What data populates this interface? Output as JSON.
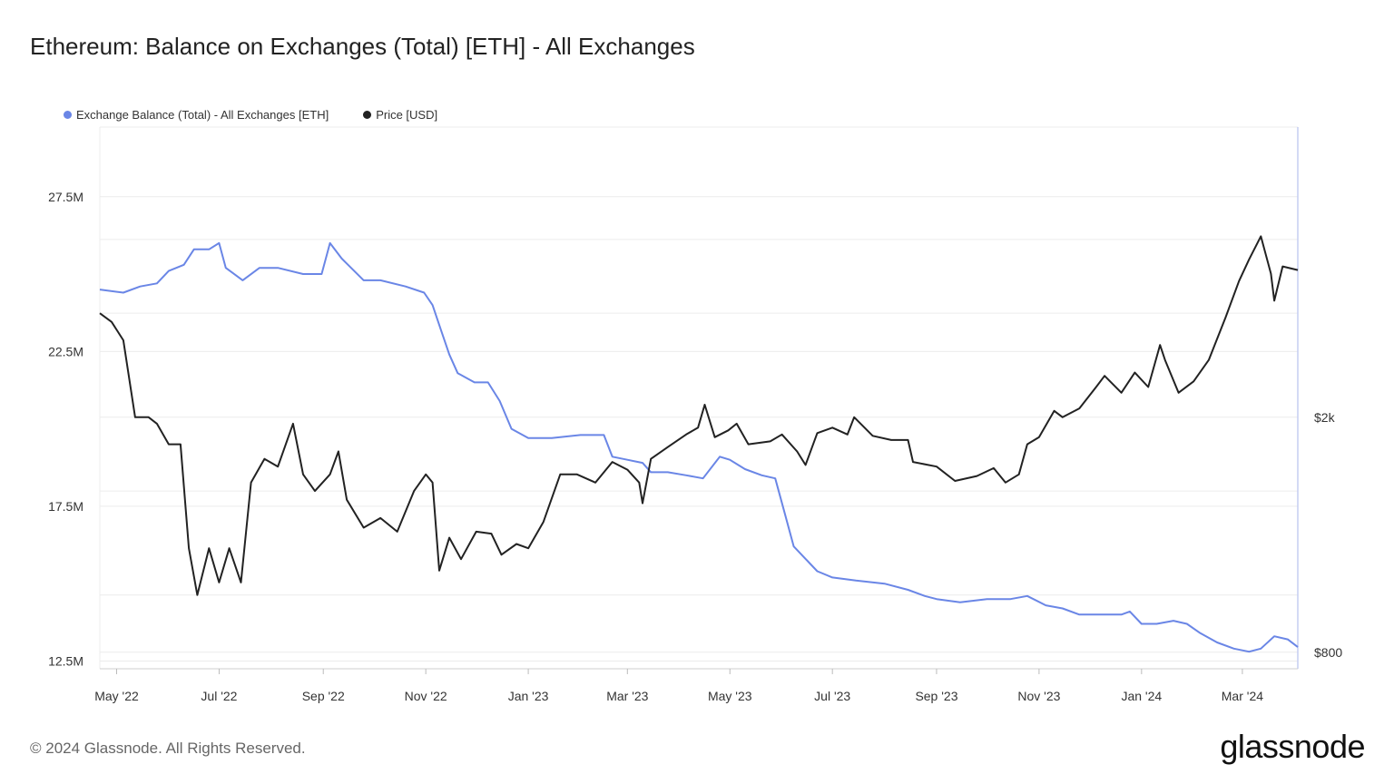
{
  "title": "Ethereum: Balance on Exchanges (Total) [ETH] - All Exchanges",
  "footer": "© 2024 Glassnode. All Rights Reserved.",
  "logo": "glassnode",
  "chart_data": {
    "type": "line",
    "title": "Ethereum: Balance on Exchanges (Total) [ETH] - All Exchanges",
    "x_ticks": [
      "May '22",
      "Jul '22",
      "Sep '22",
      "Nov '22",
      "Jan '23",
      "Mar '23",
      "May '23",
      "Jul '23",
      "Sep '23",
      "Nov '23",
      "Jan '24",
      "Mar '24"
    ],
    "x_range": [
      "2022-04-21",
      "2024-04-03"
    ],
    "left_axis": {
      "ticks": [
        "12.5M",
        "17.5M",
        "22.5M",
        "27.5M"
      ],
      "tick_values": [
        12500000,
        17500000,
        22500000,
        27500000
      ],
      "range": [
        12250000,
        29750000
      ]
    },
    "right_axis": {
      "ticks": [
        "$800",
        "$2k"
      ],
      "tick_values": [
        800,
        2000
      ],
      "scale": "log",
      "range": [
        750,
        6200
      ]
    },
    "grid": true,
    "legend_position": "top-left",
    "colors": {
      "balance": "#6a86e6",
      "price": "#222222",
      "grid": "#ececec",
      "axis": "#c5cdf2"
    },
    "series": [
      {
        "name": "Exchange Balance (Total) - All Exchanges [ETH]",
        "axis": "left",
        "color": "#6a86e6",
        "points": [
          [
            "2022-04-21",
            24.5
          ],
          [
            "2022-05-05",
            24.4
          ],
          [
            "2022-05-15",
            24.6
          ],
          [
            "2022-05-25",
            24.7
          ],
          [
            "2022-06-01",
            25.1
          ],
          [
            "2022-06-10",
            25.3
          ],
          [
            "2022-06-16",
            25.8
          ],
          [
            "2022-06-25",
            25.8
          ],
          [
            "2022-07-01",
            26.0
          ],
          [
            "2022-07-05",
            25.2
          ],
          [
            "2022-07-15",
            24.8
          ],
          [
            "2022-07-25",
            25.2
          ],
          [
            "2022-08-05",
            25.2
          ],
          [
            "2022-08-20",
            25.0
          ],
          [
            "2022-08-31",
            25.0
          ],
          [
            "2022-09-05",
            26.0
          ],
          [
            "2022-09-12",
            25.5
          ],
          [
            "2022-09-25",
            24.8
          ],
          [
            "2022-10-05",
            24.8
          ],
          [
            "2022-10-20",
            24.6
          ],
          [
            "2022-10-31",
            24.4
          ],
          [
            "2022-11-05",
            24.0
          ],
          [
            "2022-11-10",
            23.2
          ],
          [
            "2022-11-15",
            22.4
          ],
          [
            "2022-11-20",
            21.8
          ],
          [
            "2022-11-30",
            21.5
          ],
          [
            "2022-12-08",
            21.5
          ],
          [
            "2022-12-15",
            20.9
          ],
          [
            "2022-12-22",
            20.0
          ],
          [
            "2023-01-01",
            19.7
          ],
          [
            "2023-01-15",
            19.7
          ],
          [
            "2023-02-01",
            19.8
          ],
          [
            "2023-02-15",
            19.8
          ],
          [
            "2023-02-20",
            19.1
          ],
          [
            "2023-03-01",
            19.0
          ],
          [
            "2023-03-10",
            18.9
          ],
          [
            "2023-03-15",
            18.6
          ],
          [
            "2023-03-25",
            18.6
          ],
          [
            "2023-04-05",
            18.5
          ],
          [
            "2023-04-15",
            18.4
          ],
          [
            "2023-04-25",
            19.1
          ],
          [
            "2023-05-01",
            19.0
          ],
          [
            "2023-05-10",
            18.7
          ],
          [
            "2023-05-20",
            18.5
          ],
          [
            "2023-05-28",
            18.4
          ],
          [
            "2023-06-02",
            17.4
          ],
          [
            "2023-06-08",
            16.2
          ],
          [
            "2023-06-15",
            15.8
          ],
          [
            "2023-06-22",
            15.4
          ],
          [
            "2023-07-01",
            15.2
          ],
          [
            "2023-07-15",
            15.1
          ],
          [
            "2023-08-01",
            15.0
          ],
          [
            "2023-08-15",
            14.8
          ],
          [
            "2023-08-25",
            14.6
          ],
          [
            "2023-09-01",
            14.5
          ],
          [
            "2023-09-15",
            14.4
          ],
          [
            "2023-10-01",
            14.5
          ],
          [
            "2023-10-15",
            14.5
          ],
          [
            "2023-10-25",
            14.6
          ],
          [
            "2023-11-05",
            14.3
          ],
          [
            "2023-11-15",
            14.2
          ],
          [
            "2023-11-25",
            14.0
          ],
          [
            "2023-12-10",
            14.0
          ],
          [
            "2023-12-20",
            14.0
          ],
          [
            "2023-12-25",
            14.1
          ],
          [
            "2024-01-01",
            13.7
          ],
          [
            "2024-01-10",
            13.7
          ],
          [
            "2024-01-20",
            13.8
          ],
          [
            "2024-01-28",
            13.7
          ],
          [
            "2024-02-05",
            13.4
          ],
          [
            "2024-02-15",
            13.1
          ],
          [
            "2024-02-25",
            12.9
          ],
          [
            "2024-03-05",
            12.8
          ],
          [
            "2024-03-12",
            12.9
          ],
          [
            "2024-03-20",
            13.3
          ],
          [
            "2024-03-28",
            13.2
          ],
          [
            "2024-04-03",
            12.95
          ]
        ]
      },
      {
        "name": "Price [USD]",
        "axis": "right",
        "color": "#222222",
        "points": [
          [
            "2022-04-21",
            3000
          ],
          [
            "2022-04-28",
            2900
          ],
          [
            "2022-05-05",
            2700
          ],
          [
            "2022-05-12",
            2000
          ],
          [
            "2022-05-20",
            2000
          ],
          [
            "2022-05-25",
            1950
          ],
          [
            "2022-06-01",
            1800
          ],
          [
            "2022-06-08",
            1800
          ],
          [
            "2022-06-13",
            1200
          ],
          [
            "2022-06-18",
            1000
          ],
          [
            "2022-06-25",
            1200
          ],
          [
            "2022-07-01",
            1050
          ],
          [
            "2022-07-07",
            1200
          ],
          [
            "2022-07-14",
            1050
          ],
          [
            "2022-07-20",
            1550
          ],
          [
            "2022-07-28",
            1700
          ],
          [
            "2022-08-05",
            1650
          ],
          [
            "2022-08-14",
            1950
          ],
          [
            "2022-08-20",
            1600
          ],
          [
            "2022-08-27",
            1500
          ],
          [
            "2022-09-05",
            1600
          ],
          [
            "2022-09-10",
            1750
          ],
          [
            "2022-09-15",
            1450
          ],
          [
            "2022-09-25",
            1300
          ],
          [
            "2022-10-05",
            1350
          ],
          [
            "2022-10-15",
            1280
          ],
          [
            "2022-10-25",
            1500
          ],
          [
            "2022-11-01",
            1600
          ],
          [
            "2022-11-05",
            1550
          ],
          [
            "2022-11-09",
            1100
          ],
          [
            "2022-11-15",
            1250
          ],
          [
            "2022-11-22",
            1150
          ],
          [
            "2022-12-01",
            1280
          ],
          [
            "2022-12-10",
            1270
          ],
          [
            "2022-12-16",
            1170
          ],
          [
            "2022-12-25",
            1220
          ],
          [
            "2023-01-01",
            1200
          ],
          [
            "2023-01-10",
            1330
          ],
          [
            "2023-01-20",
            1600
          ],
          [
            "2023-01-30",
            1600
          ],
          [
            "2023-02-10",
            1550
          ],
          [
            "2023-02-20",
            1680
          ],
          [
            "2023-03-01",
            1630
          ],
          [
            "2023-03-08",
            1550
          ],
          [
            "2023-03-10",
            1430
          ],
          [
            "2023-03-15",
            1700
          ],
          [
            "2023-03-25",
            1780
          ],
          [
            "2023-04-05",
            1870
          ],
          [
            "2023-04-12",
            1920
          ],
          [
            "2023-04-16",
            2100
          ],
          [
            "2023-04-22",
            1850
          ],
          [
            "2023-04-30",
            1900
          ],
          [
            "2023-05-05",
            1950
          ],
          [
            "2023-05-12",
            1800
          ],
          [
            "2023-05-25",
            1820
          ],
          [
            "2023-06-01",
            1870
          ],
          [
            "2023-06-10",
            1750
          ],
          [
            "2023-06-15",
            1660
          ],
          [
            "2023-06-22",
            1880
          ],
          [
            "2023-07-01",
            1920
          ],
          [
            "2023-07-10",
            1870
          ],
          [
            "2023-07-14",
            2000
          ],
          [
            "2023-07-25",
            1860
          ],
          [
            "2023-08-05",
            1830
          ],
          [
            "2023-08-15",
            1830
          ],
          [
            "2023-08-18",
            1680
          ],
          [
            "2023-09-01",
            1650
          ],
          [
            "2023-09-12",
            1560
          ],
          [
            "2023-09-25",
            1590
          ],
          [
            "2023-10-05",
            1640
          ],
          [
            "2023-10-12",
            1550
          ],
          [
            "2023-10-20",
            1600
          ],
          [
            "2023-10-25",
            1800
          ],
          [
            "2023-11-01",
            1850
          ],
          [
            "2023-11-10",
            2050
          ],
          [
            "2023-11-15",
            2000
          ],
          [
            "2023-11-25",
            2070
          ],
          [
            "2023-12-05",
            2250
          ],
          [
            "2023-12-10",
            2350
          ],
          [
            "2023-12-20",
            2200
          ],
          [
            "2023-12-28",
            2380
          ],
          [
            "2024-01-05",
            2250
          ],
          [
            "2024-01-12",
            2650
          ],
          [
            "2024-01-15",
            2500
          ],
          [
            "2024-01-23",
            2200
          ],
          [
            "2024-02-01",
            2300
          ],
          [
            "2024-02-10",
            2500
          ],
          [
            "2024-02-20",
            2950
          ],
          [
            "2024-02-28",
            3400
          ],
          [
            "2024-03-05",
            3700
          ],
          [
            "2024-03-12",
            4050
          ],
          [
            "2024-03-18",
            3500
          ],
          [
            "2024-03-20",
            3150
          ],
          [
            "2024-03-25",
            3600
          ],
          [
            "2024-04-03",
            3550
          ]
        ]
      }
    ]
  }
}
